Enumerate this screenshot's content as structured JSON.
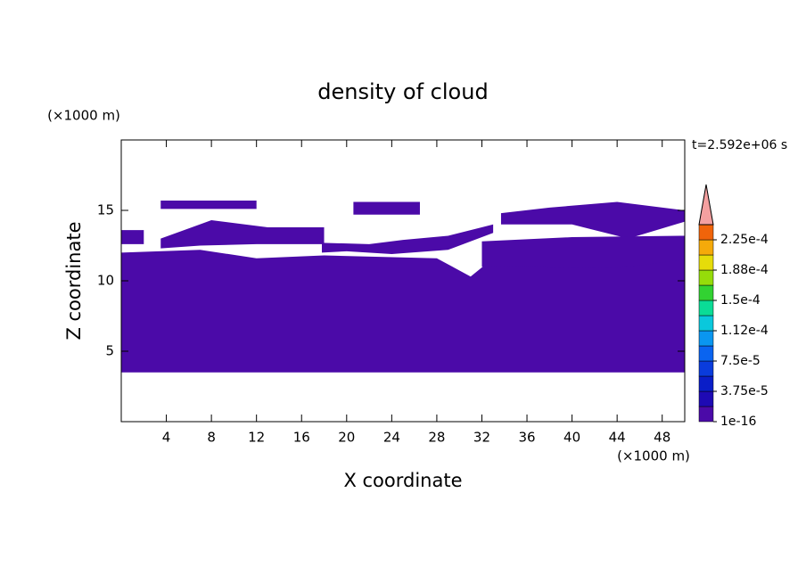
{
  "chart_data": {
    "type": "contour",
    "title": "density of cloud",
    "xlabel": "X coordinate",
    "ylabel": "Z coordinate",
    "xunit": "(×1000 m)",
    "yunit": "(×1000 m)",
    "time_label": "t=2.592e+06 s",
    "xlim": [
      0,
      50
    ],
    "ylim": [
      0,
      20
    ],
    "xticks": [
      4,
      8,
      12,
      16,
      20,
      24,
      28,
      32,
      36,
      40,
      44,
      48
    ],
    "yticks": [
      5,
      10,
      15
    ],
    "regions": [
      {
        "value": 1e-16,
        "color": "#4b0aa8",
        "polygon": [
          [
            0,
            3.5
          ],
          [
            50,
            3.5
          ],
          [
            50,
            12.2
          ],
          [
            40,
            12.2
          ],
          [
            33,
            11.6
          ],
          [
            31,
            10.3
          ],
          [
            28,
            11.6
          ],
          [
            18,
            11.8
          ],
          [
            12,
            11.6
          ],
          [
            7,
            12.2
          ],
          [
            0,
            12
          ]
        ]
      },
      {
        "value": 1e-16,
        "color": "#4b0aa8",
        "polygon": [
          [
            0,
            12.6
          ],
          [
            2,
            12.6
          ],
          [
            2,
            13.6
          ],
          [
            0,
            13.6
          ]
        ]
      },
      {
        "value": 1e-16,
        "color": "#4b0aa8",
        "polygon": [
          [
            3.5,
            13
          ],
          [
            8,
            14.3
          ],
          [
            13,
            13.8
          ],
          [
            18,
            13.8
          ],
          [
            18,
            12.6
          ],
          [
            12,
            12.6
          ],
          [
            7,
            12.5
          ],
          [
            3.5,
            12.3
          ]
        ]
      },
      {
        "value": 1e-16,
        "color": "#4b0aa8",
        "polygon": [
          [
            3.5,
            15.1
          ],
          [
            12,
            15.1
          ],
          [
            12,
            15.7
          ],
          [
            3.5,
            15.7
          ]
        ]
      },
      {
        "value": 1e-16,
        "color": "#4b0aa8",
        "polygon": [
          [
            20.6,
            14.7
          ],
          [
            26.5,
            14.7
          ],
          [
            26.5,
            15.6
          ],
          [
            20.6,
            15.6
          ]
        ]
      },
      {
        "value": 1e-16,
        "color": "#4b0aa8",
        "polygon": [
          [
            17.8,
            12.7
          ],
          [
            22,
            12.6
          ],
          [
            25,
            12.9
          ],
          [
            29,
            13.2
          ],
          [
            33,
            14
          ],
          [
            33,
            13.4
          ],
          [
            29,
            12.2
          ],
          [
            24,
            11.9
          ],
          [
            20,
            12.1
          ],
          [
            17.8,
            12
          ]
        ]
      },
      {
        "value": 1e-16,
        "color": "#4b0aa8",
        "polygon": [
          [
            33.7,
            14.8
          ],
          [
            38,
            15.2
          ],
          [
            44,
            15.6
          ],
          [
            50,
            15
          ],
          [
            50,
            14.2
          ],
          [
            45,
            13
          ],
          [
            40,
            14
          ],
          [
            33.7,
            14
          ]
        ]
      },
      {
        "value": 1e-16,
        "color": "#4b0aa8",
        "polygon": [
          [
            32,
            11
          ],
          [
            44,
            10.9
          ],
          [
            50,
            11.5
          ],
          [
            50,
            13.2
          ],
          [
            40,
            13.1
          ],
          [
            32,
            12.8
          ]
        ]
      }
    ],
    "colorbar": {
      "lim": [
        0,
        0.00024375
      ],
      "colors": [
        "#4b0aa8",
        "#1e0ab4",
        "#0a1ec8",
        "#0a3cdc",
        "#0a64f0",
        "#0a96f0",
        "#0ac8dc",
        "#0adc96",
        "#32d232",
        "#96dc0a",
        "#e6dc0a",
        "#f5aa0a",
        "#f0640a"
      ],
      "extend_color": "#f4a0a0",
      "ticks": [
        {
          "value": 1e-16,
          "label": "1e-16"
        },
        {
          "value": 3.75e-05,
          "label": "3.75e-5"
        },
        {
          "value": 7.5e-05,
          "label": "7.5e-5"
        },
        {
          "value": 0.0001125,
          "label": "1.12e-4"
        },
        {
          "value": 0.00015,
          "label": "1.5e-4"
        },
        {
          "value": 0.0001875,
          "label": "1.88e-4"
        },
        {
          "value": 0.000225,
          "label": "2.25e-4"
        }
      ]
    }
  }
}
